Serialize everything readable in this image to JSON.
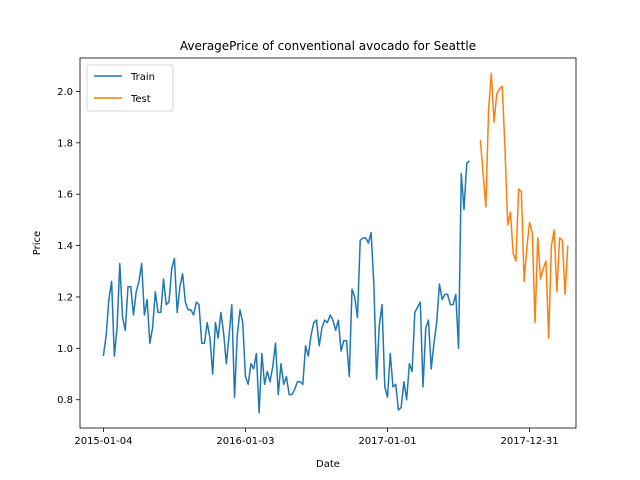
{
  "chart_data": {
    "type": "line",
    "title": "AveragePrice of conventional avocado for Seattle",
    "xlabel": "Date",
    "ylabel": "Price",
    "x_tick_labels": [
      "2015-01-04",
      "2016-01-03",
      "2017-01-01",
      "2017-12-31"
    ],
    "y_tick_labels": [
      "0.8",
      "1.0",
      "1.2",
      "1.4",
      "1.6",
      "1.8",
      "2.0"
    ],
    "xlim": [
      "2014-11-05",
      "2018-04-29"
    ],
    "ylim": [
      0.69,
      2.13
    ],
    "grid": false,
    "legend_position": "top-left",
    "series": [
      {
        "name": "Train",
        "color": "#1f77b4",
        "start_date": "2015-01-04",
        "step_days": 7,
        "values": [
          0.97,
          1.05,
          1.19,
          1.26,
          0.97,
          1.08,
          1.33,
          1.12,
          1.07,
          1.24,
          1.24,
          1.13,
          1.22,
          1.26,
          1.33,
          1.13,
          1.19,
          1.02,
          1.08,
          1.22,
          1.14,
          1.14,
          1.27,
          1.17,
          1.18,
          1.31,
          1.35,
          1.14,
          1.24,
          1.29,
          1.18,
          1.15,
          1.15,
          1.13,
          1.18,
          1.17,
          1.02,
          1.02,
          1.1,
          1.04,
          0.9,
          1.1,
          1.04,
          1.14,
          1.06,
          0.94,
          1.05,
          1.17,
          0.81,
          1.05,
          1.15,
          1.1,
          0.89,
          0.86,
          0.94,
          0.92,
          0.98,
          0.75,
          0.98,
          0.86,
          0.91,
          0.87,
          0.93,
          1.02,
          0.82,
          0.94,
          0.86,
          0.89,
          0.82,
          0.82,
          0.84,
          0.87,
          0.87,
          0.86,
          1.01,
          0.97,
          1.05,
          1.1,
          1.11,
          1.01,
          1.08,
          1.11,
          1.1,
          1.13,
          1.11,
          1.07,
          1.11,
          0.99,
          1.03,
          1.03,
          0.89,
          1.23,
          1.2,
          1.12,
          1.42,
          1.43,
          1.43,
          1.41,
          1.45,
          1.25,
          0.88,
          1.09,
          1.17,
          0.85,
          0.81,
          0.98,
          0.85,
          0.86,
          0.76,
          0.77,
          0.87,
          0.8,
          0.94,
          0.91,
          1.14,
          1.16,
          1.18,
          0.85,
          1.08,
          1.11,
          0.92,
          1.02,
          1.1,
          1.25,
          1.19,
          1.21,
          1.21,
          1.17,
          1.17,
          1.21,
          1.0,
          1.68,
          1.54,
          1.72,
          1.73
        ]
      },
      {
        "name": "Test",
        "color": "#ff7f0e",
        "start_date": "2017-08-27",
        "step_days": 7,
        "values": [
          1.81,
          1.68,
          1.55,
          1.93,
          2.07,
          1.88,
          1.99,
          2.01,
          2.02,
          1.78,
          1.48,
          1.53,
          1.37,
          1.34,
          1.62,
          1.61,
          1.26,
          1.39,
          1.49,
          1.45,
          1.1,
          1.43,
          1.27,
          1.31,
          1.34,
          1.04,
          1.4,
          1.46,
          1.22,
          1.43,
          1.42,
          1.21,
          1.4
        ]
      }
    ]
  }
}
